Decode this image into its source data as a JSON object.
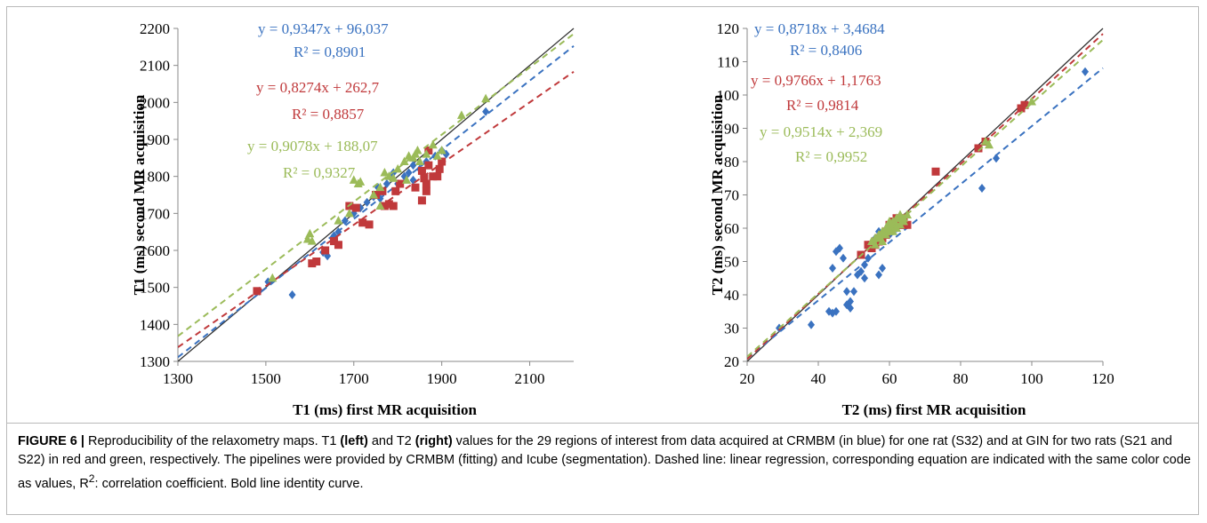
{
  "chart_data": [
    {
      "type": "scatter",
      "title": "",
      "xlabel": "T1 (ms) first MR acquisition",
      "ylabel": "T1 (ms) second MR acquisition",
      "xlim": [
        1300,
        2200
      ],
      "ylim": [
        1300,
        2200
      ],
      "xticks": [
        1300,
        1500,
        1700,
        1900,
        2100
      ],
      "yticks": [
        1300,
        1400,
        1500,
        1600,
        1700,
        1800,
        1900,
        2000,
        2100,
        2200
      ],
      "identity_line": true,
      "series": [
        {
          "color": "#3a72c0",
          "marker": "diamond",
          "slope": 0.9347,
          "intercept": 96.037,
          "equation": "y = 0,9347x + 96,037",
          "r2": "R² = 0,8901",
          "points": [
            [
              1485,
              1490
            ],
            [
              1505,
              1515
            ],
            [
              1560,
              1480
            ],
            [
              1630,
              1595
            ],
            [
              1640,
              1585
            ],
            [
              1655,
              1640
            ],
            [
              1665,
              1650
            ],
            [
              1680,
              1680
            ],
            [
              1700,
              1700
            ],
            [
              1715,
              1715
            ],
            [
              1730,
              1730
            ],
            [
              1745,
              1745
            ],
            [
              1755,
              1770
            ],
            [
              1765,
              1760
            ],
            [
              1775,
              1780
            ],
            [
              1785,
              1795
            ],
            [
              1790,
              1810
            ],
            [
              1800,
              1780
            ],
            [
              1815,
              1800
            ],
            [
              1825,
              1810
            ],
            [
              1835,
              1830
            ],
            [
              1850,
              1820
            ],
            [
              1865,
              1840
            ],
            [
              1885,
              1855
            ],
            [
              1900,
              1870
            ],
            [
              1910,
              1860
            ],
            [
              1835,
              1790
            ],
            [
              1760,
              1740
            ],
            [
              2000,
              1975
            ]
          ]
        },
        {
          "color": "#c0393b",
          "marker": "square",
          "slope": 0.8274,
          "intercept": 262.7,
          "equation": "y = 0,8274x + 262,7",
          "r2": "R² = 0,8857",
          "points": [
            [
              1480,
              1490
            ],
            [
              1605,
              1565
            ],
            [
              1615,
              1570
            ],
            [
              1635,
              1600
            ],
            [
              1655,
              1625
            ],
            [
              1665,
              1615
            ],
            [
              1690,
              1720
            ],
            [
              1705,
              1715
            ],
            [
              1720,
              1675
            ],
            [
              1735,
              1670
            ],
            [
              1750,
              1750
            ],
            [
              1765,
              1760
            ],
            [
              1770,
              1720
            ],
            [
              1780,
              1725
            ],
            [
              1790,
              1720
            ],
            [
              1795,
              1760
            ],
            [
              1805,
              1780
            ],
            [
              1840,
              1770
            ],
            [
              1855,
              1735
            ],
            [
              1860,
              1795
            ],
            [
              1865,
              1760
            ],
            [
              1870,
              1830
            ],
            [
              1870,
              1870
            ],
            [
              1880,
              1800
            ],
            [
              1890,
              1800
            ],
            [
              1895,
              1820
            ],
            [
              1900,
              1840
            ],
            [
              1855,
              1815
            ],
            [
              1865,
              1780
            ]
          ]
        },
        {
          "color": "#9bbb59",
          "marker": "triangle",
          "slope": 0.9078,
          "intercept": 188.07,
          "equation": "y = 0,9078x + 188,07",
          "r2": "R² = 0,9327",
          "points": [
            [
              1515,
              1525
            ],
            [
              1595,
              1630
            ],
            [
              1600,
              1645
            ],
            [
              1605,
              1625
            ],
            [
              1665,
              1680
            ],
            [
              1700,
              1790
            ],
            [
              1710,
              1780
            ],
            [
              1715,
              1785
            ],
            [
              1745,
              1750
            ],
            [
              1760,
              1770
            ],
            [
              1770,
              1810
            ],
            [
              1790,
              1795
            ],
            [
              1800,
              1820
            ],
            [
              1815,
              1840
            ],
            [
              1825,
              1855
            ],
            [
              1835,
              1850
            ],
            [
              1845,
              1870
            ],
            [
              1850,
              1840
            ],
            [
              1865,
              1860
            ],
            [
              1890,
              1855
            ],
            [
              1900,
              1870
            ],
            [
              1945,
              1965
            ],
            [
              2000,
              2010
            ],
            [
              1780,
              1800
            ],
            [
              1820,
              1790
            ],
            [
              1760,
              1720
            ],
            [
              1840,
              1860
            ],
            [
              1690,
              1700
            ],
            [
              1880,
              1885
            ]
          ]
        }
      ]
    },
    {
      "type": "scatter",
      "title": "",
      "xlabel": "T2 (ms) first MR acquisition",
      "ylabel": "T2 (ms) second MR acquisition",
      "xlim": [
        20,
        120
      ],
      "ylim": [
        20,
        120
      ],
      "xticks": [
        20,
        40,
        60,
        80,
        100,
        120
      ],
      "yticks": [
        20,
        30,
        40,
        50,
        60,
        70,
        80,
        90,
        100,
        110,
        120
      ],
      "identity_line": true,
      "series": [
        {
          "color": "#3a72c0",
          "marker": "diamond",
          "slope": 0.8718,
          "intercept": 3.4684,
          "equation": "y = 0,8718x + 3,4684",
          "r2": "R² = 0,8406",
          "points": [
            [
              29,
              30
            ],
            [
              38,
              31
            ],
            [
              43,
              35
            ],
            [
              44,
              34.5
            ],
            [
              45,
              35
            ],
            [
              44,
              48
            ],
            [
              45,
              53
            ],
            [
              46,
              54
            ],
            [
              47,
              51
            ],
            [
              48,
              41
            ],
            [
              48,
              37
            ],
            [
              49,
              36
            ],
            [
              49,
              38
            ],
            [
              50,
              41
            ],
            [
              51,
              46
            ],
            [
              52,
              47
            ],
            [
              53,
              49
            ],
            [
              53,
              45
            ],
            [
              54,
              51
            ],
            [
              55,
              55
            ],
            [
              56,
              57
            ],
            [
              57,
              59
            ],
            [
              57,
              46
            ],
            [
              58,
              48
            ],
            [
              60,
              58
            ],
            [
              62,
              60
            ],
            [
              86,
              72
            ],
            [
              90,
              81
            ],
            [
              115,
              107
            ]
          ]
        },
        {
          "color": "#c0393b",
          "marker": "square",
          "slope": 0.9766,
          "intercept": 1.1763,
          "equation": "y = 0,9766x + 1,1763",
          "r2": "R² = 0,9814",
          "points": [
            [
              52,
              52
            ],
            [
              54,
              55
            ],
            [
              55,
              55
            ],
            [
              56,
              56
            ],
            [
              57,
              57
            ],
            [
              58,
              58
            ],
            [
              59,
              59
            ],
            [
              60,
              60
            ],
            [
              60,
              61
            ],
            [
              61,
              61
            ],
            [
              61,
              62
            ],
            [
              62,
              62
            ],
            [
              62,
              61
            ],
            [
              63,
              62
            ],
            [
              64,
              63
            ],
            [
              64,
              61
            ],
            [
              65,
              61
            ],
            [
              73,
              77
            ],
            [
              85,
              84
            ],
            [
              87,
              86
            ],
            [
              97,
              96
            ],
            [
              98,
              97
            ],
            [
              57,
              56
            ],
            [
              59,
              58
            ],
            [
              58,
              57
            ],
            [
              56,
              55
            ],
            [
              63,
              61
            ],
            [
              62,
              63
            ],
            [
              55,
              54
            ]
          ]
        },
        {
          "color": "#9bbb59",
          "marker": "triangle",
          "slope": 0.9514,
          "intercept": 2.369,
          "equation": "y = 0,9514x + 2,369",
          "r2": "R² = 0,9952",
          "points": [
            [
              55,
              56
            ],
            [
              56,
              55
            ],
            [
              57,
              57
            ],
            [
              58,
              58
            ],
            [
              58,
              56
            ],
            [
              59,
              58
            ],
            [
              59,
              59
            ],
            [
              60,
              59
            ],
            [
              60,
              61
            ],
            [
              61,
              60
            ],
            [
              61,
              62
            ],
            [
              62,
              61
            ],
            [
              62,
              60
            ],
            [
              63,
              63
            ],
            [
              63,
              64
            ],
            [
              64,
              63
            ],
            [
              64,
              62
            ],
            [
              65,
              64
            ],
            [
              87,
              86
            ],
            [
              88,
              85
            ],
            [
              100,
              98
            ],
            [
              57,
              58
            ],
            [
              60,
              62
            ],
            [
              61,
              59
            ],
            [
              62,
              63
            ],
            [
              58,
              59
            ],
            [
              56,
              57
            ],
            [
              59,
              60
            ],
            [
              63,
              61
            ]
          ]
        }
      ]
    }
  ],
  "caption": {
    "figure_label": "FIGURE 6 |",
    "part1": " Reproducibility of the relaxometry maps. T1 ",
    "left_word": "(left)",
    "part2": " and T2 ",
    "right_word": "(right)",
    "part3": " values for the 29 regions of interest from data acquired at CRMBM (in blue) for one rat (S32) and at GIN for two rats (S21 and S22) in red and green, respectively. The pipelines were provided by CRMBM (fitting) and Icube (segmentation). Dashed line: linear regression, corresponding equation are indicated with the same color code as values, R",
    "sup": "2",
    "part4": ": correlation coefficient. Bold line identity curve."
  }
}
